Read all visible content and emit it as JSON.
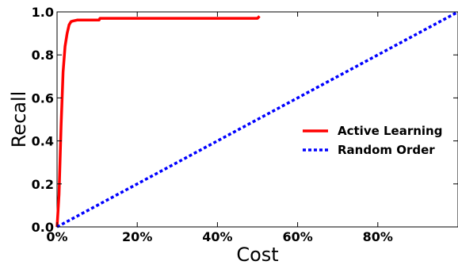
{
  "chart_data": {
    "type": "line",
    "xlabel": "Cost",
    "ylabel": "Recall",
    "xlim": [
      0,
      1
    ],
    "ylim": [
      0,
      1
    ],
    "x_ticks": [
      {
        "value": 0.0,
        "label": "0%"
      },
      {
        "value": 0.2,
        "label": "20%"
      },
      {
        "value": 0.4,
        "label": "40%"
      },
      {
        "value": 0.6,
        "label": "60%"
      },
      {
        "value": 0.8,
        "label": "80%"
      }
    ],
    "y_ticks": [
      {
        "value": 0.0,
        "label": "0.0"
      },
      {
        "value": 0.2,
        "label": "0.2"
      },
      {
        "value": 0.4,
        "label": "0.4"
      },
      {
        "value": 0.6,
        "label": "0.6"
      },
      {
        "value": 0.8,
        "label": "0.8"
      },
      {
        "value": 1.0,
        "label": "1.0"
      }
    ],
    "grid": false,
    "legend_position": "right",
    "series": [
      {
        "name": "Active Learning",
        "color": "#ff0000",
        "style": "solid",
        "points": [
          [
            0.0,
            0.0
          ],
          [
            0.005,
            0.15
          ],
          [
            0.01,
            0.47
          ],
          [
            0.015,
            0.72
          ],
          [
            0.02,
            0.84
          ],
          [
            0.025,
            0.9
          ],
          [
            0.03,
            0.94
          ],
          [
            0.035,
            0.955
          ],
          [
            0.04,
            0.958
          ],
          [
            0.05,
            0.962
          ],
          [
            0.105,
            0.962
          ],
          [
            0.107,
            0.97
          ],
          [
            0.3,
            0.97
          ],
          [
            0.5,
            0.97
          ],
          [
            0.505,
            0.98
          ]
        ]
      },
      {
        "name": "Random Order",
        "color": "#0000ff",
        "style": "dotted",
        "points": [
          [
            0.0,
            0.0
          ],
          [
            0.1,
            0.1
          ],
          [
            0.2,
            0.2
          ],
          [
            0.3,
            0.3
          ],
          [
            0.4,
            0.4
          ],
          [
            0.5,
            0.5
          ],
          [
            0.6,
            0.6
          ],
          [
            0.7,
            0.7
          ],
          [
            0.8,
            0.8
          ],
          [
            0.9,
            0.9
          ],
          [
            1.0,
            1.0
          ]
        ]
      }
    ]
  }
}
